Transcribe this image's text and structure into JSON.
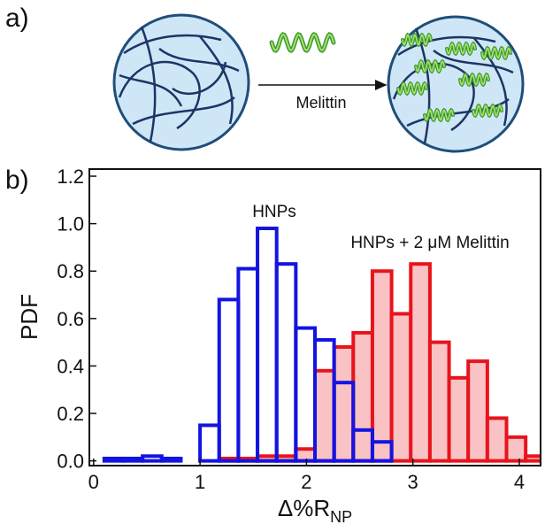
{
  "panel_labels": [
    "a)",
    "b)"
  ],
  "schematic": {
    "arrow_label": "Melittin"
  },
  "chart_data": {
    "type": "histogram",
    "xlabel": "Δ%R",
    "xlabel_subscript": "NP",
    "ylabel": "PDF",
    "bins": [
      0.1,
      0.28,
      0.46,
      0.64,
      0.82,
      1.0,
      1.18,
      1.36,
      1.54,
      1.72,
      1.9,
      2.08,
      2.26,
      2.44,
      2.62,
      2.8,
      2.98,
      3.16,
      3.34,
      3.52,
      3.7,
      3.88,
      4.06,
      4.24
    ],
    "series": [
      {
        "name": "HNPs + 2 μM Melittin",
        "color": "#e8141c",
        "fill": "#f9c2c4",
        "values": [
          0,
          0,
          0,
          0,
          0,
          0,
          0.01,
          0.01,
          0.02,
          0.02,
          0.05,
          0.38,
          0.48,
          0.54,
          0.8,
          0.62,
          0.83,
          0.5,
          0.35,
          0.42,
          0.18,
          0.1,
          0.02
        ]
      },
      {
        "name": "HNPs",
        "color": "#1414e0",
        "values": [
          0.01,
          0.01,
          0.02,
          0.01,
          0,
          0.15,
          0.68,
          0.81,
          0.98,
          0.83,
          0.56,
          0.51,
          0.33,
          0.13,
          0.08,
          0,
          0,
          0,
          0,
          0,
          0,
          0,
          0
        ]
      }
    ],
    "xlim": [
      -0.04,
      4.2
    ],
    "ylim": [
      -0.02,
      1.23
    ],
    "xticks": [
      0,
      1,
      2,
      3,
      4
    ],
    "yticks": [
      {
        "value": 0,
        "label": "0.0"
      },
      0.2,
      0.4,
      0.6,
      0.8,
      {
        "value": 1,
        "label": "1.0"
      },
      1.2
    ]
  }
}
